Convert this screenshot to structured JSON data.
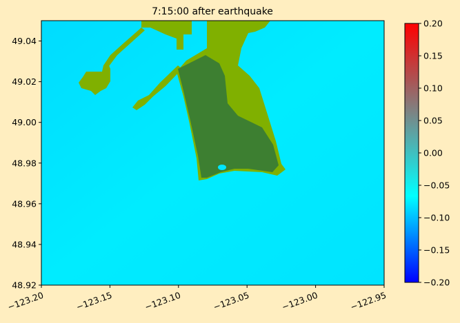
{
  "chart_data": {
    "type": "heatmap",
    "title": "7:15:00 after earthquake",
    "xlim": [
      -123.2,
      -122.95
    ],
    "xticks": [
      {
        "value": -123.2,
        "label": "−123.20"
      },
      {
        "value": -123.15,
        "label": "−123.15"
      },
      {
        "value": -123.1,
        "label": "−123.10"
      },
      {
        "value": -123.05,
        "label": "−123.05"
      },
      {
        "value": -123.0,
        "label": "−123.00"
      },
      {
        "value": -122.95,
        "label": "−122.95"
      }
    ],
    "ylim": [
      48.92,
      49.05
    ],
    "yticks": [
      48.92,
      48.94,
      48.96,
      48.98,
      {
        "value": 49.0,
        "label": "49.00"
      },
      49.02,
      49.04
    ],
    "colorbar": {
      "lim": [
        -0.2,
        0.2
      ],
      "ticks": [
        {
          "value": -0.2,
          "label": "−0.20"
        },
        {
          "value": -0.15,
          "label": "−0.15"
        },
        {
          "value": -0.1,
          "label": "−0.10"
        },
        {
          "value": -0.05,
          "label": "−0.05"
        },
        {
          "value": 0.0,
          "label": "0.00"
        },
        0.05,
        {
          "value": 0.1,
          "label": "0.10"
        },
        0.15,
        {
          "value": 0.2,
          "label": "0.20"
        }
      ],
      "colors": [
        "#0000ff",
        "#00ffff",
        "#808080",
        "#ff0000"
      ]
    }
  }
}
